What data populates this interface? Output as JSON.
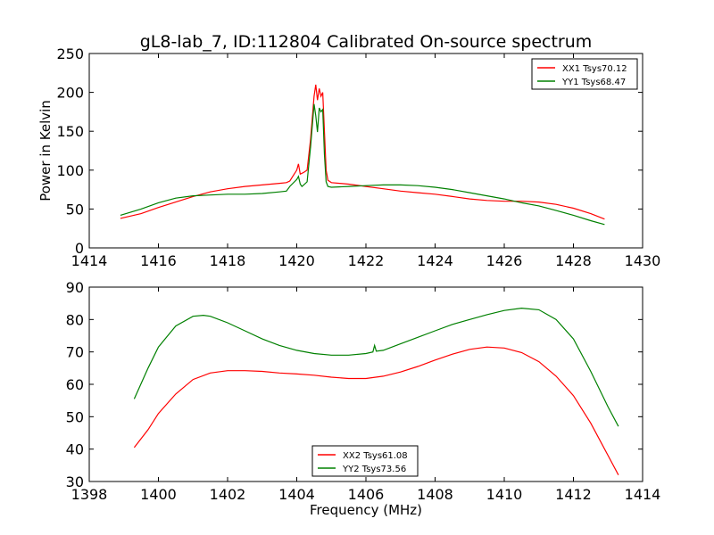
{
  "figure_title": "gL8-lab_7, ID:112804 Calibrated On-source spectrum",
  "chart_data": [
    {
      "type": "line",
      "title": "gL8-lab_7, ID:112804 Calibrated On-source spectrum",
      "xlabel": "",
      "ylabel": "Power in Kelvin",
      "xlim": [
        1414,
        1430
      ],
      "ylim": [
        0,
        250
      ],
      "xticks": [
        1414,
        1416,
        1418,
        1420,
        1422,
        1424,
        1426,
        1428,
        1430
      ],
      "yticks": [
        0,
        50,
        100,
        150,
        200,
        250
      ],
      "legend": "top-right",
      "series": [
        {
          "name": "XX1 Tsys70.12",
          "color": "#ff0000",
          "points": [
            [
              1414.9,
              38
            ],
            [
              1415.5,
              44
            ],
            [
              1416,
              52
            ],
            [
              1416.5,
              59
            ],
            [
              1417,
              66
            ],
            [
              1417.5,
              72
            ],
            [
              1418,
              76
            ],
            [
              1418.5,
              79
            ],
            [
              1419,
              81
            ],
            [
              1419.5,
              83
            ],
            [
              1419.7,
              84
            ],
            [
              1419.8,
              86
            ],
            [
              1420.0,
              100
            ],
            [
              1420.05,
              108
            ],
            [
              1420.1,
              95
            ],
            [
              1420.2,
              97
            ],
            [
              1420.3,
              100
            ],
            [
              1420.4,
              140
            ],
            [
              1420.5,
              195
            ],
            [
              1420.55,
              210
            ],
            [
              1420.6,
              190
            ],
            [
              1420.65,
              205
            ],
            [
              1420.7,
              195
            ],
            [
              1420.75,
              200
            ],
            [
              1420.8,
              150
            ],
            [
              1420.85,
              100
            ],
            [
              1420.9,
              87
            ],
            [
              1421,
              84
            ],
            [
              1421.5,
              82
            ],
            [
              1422,
              79
            ],
            [
              1422.5,
              76
            ],
            [
              1423,
              73
            ],
            [
              1423.5,
              71
            ],
            [
              1424,
              69
            ],
            [
              1424.5,
              66
            ],
            [
              1425,
              63
            ],
            [
              1425.5,
              61
            ],
            [
              1426,
              60
            ],
            [
              1426.5,
              60
            ],
            [
              1427,
              59
            ],
            [
              1427.5,
              56
            ],
            [
              1428,
              51
            ],
            [
              1428.5,
              44
            ],
            [
              1428.9,
              37
            ]
          ]
        },
        {
          "name": "YY1 Tsys68.47",
          "color": "#008000",
          "points": [
            [
              1414.9,
              42
            ],
            [
              1415.5,
              50
            ],
            [
              1416,
              58
            ],
            [
              1416.5,
              64
            ],
            [
              1417,
              67
            ],
            [
              1417.5,
              68
            ],
            [
              1418,
              69
            ],
            [
              1418.5,
              69
            ],
            [
              1419,
              70
            ],
            [
              1419.5,
              72
            ],
            [
              1419.7,
              73
            ],
            [
              1419.8,
              79
            ],
            [
              1420.0,
              88
            ],
            [
              1420.05,
              92
            ],
            [
              1420.1,
              82
            ],
            [
              1420.15,
              79
            ],
            [
              1420.2,
              81
            ],
            [
              1420.3,
              85
            ],
            [
              1420.4,
              130
            ],
            [
              1420.5,
              185
            ],
            [
              1420.55,
              170
            ],
            [
              1420.6,
              149
            ],
            [
              1420.65,
              180
            ],
            [
              1420.7,
              175
            ],
            [
              1420.75,
              178
            ],
            [
              1420.8,
              120
            ],
            [
              1420.85,
              85
            ],
            [
              1420.9,
              79
            ],
            [
              1421,
              78
            ],
            [
              1421.5,
              79
            ],
            [
              1422,
              80
            ],
            [
              1422.5,
              81
            ],
            [
              1423,
              81
            ],
            [
              1423.5,
              80
            ],
            [
              1424,
              78
            ],
            [
              1424.5,
              75
            ],
            [
              1425,
              71
            ],
            [
              1425.5,
              67
            ],
            [
              1426,
              63
            ],
            [
              1426.5,
              58
            ],
            [
              1427,
              54
            ],
            [
              1427.5,
              48
            ],
            [
              1428,
              42
            ],
            [
              1428.5,
              35
            ],
            [
              1428.9,
              30
            ]
          ]
        }
      ]
    },
    {
      "type": "line",
      "title": "",
      "xlabel": "Frequency (MHz)",
      "ylabel": "",
      "xlim": [
        1398,
        1414
      ],
      "ylim": [
        30,
        90
      ],
      "xticks": [
        1398,
        1400,
        1402,
        1404,
        1406,
        1408,
        1410,
        1412,
        1414
      ],
      "yticks": [
        30,
        40,
        50,
        60,
        70,
        80,
        90
      ],
      "legend": "bottom-center",
      "series": [
        {
          "name": "XX2 Tsys61.08",
          "color": "#ff0000",
          "points": [
            [
              1399.3,
              40.5
            ],
            [
              1399.7,
              46
            ],
            [
              1400,
              51
            ],
            [
              1400.5,
              57
            ],
            [
              1401,
              61.5
            ],
            [
              1401.5,
              63.5
            ],
            [
              1402,
              64.2
            ],
            [
              1402.5,
              64.2
            ],
            [
              1403,
              64
            ],
            [
              1403.5,
              63.5
            ],
            [
              1404,
              63.2
            ],
            [
              1404.5,
              62.8
            ],
            [
              1405,
              62.2
            ],
            [
              1405.5,
              61.8
            ],
            [
              1406,
              61.8
            ],
            [
              1406.5,
              62.5
            ],
            [
              1407,
              63.8
            ],
            [
              1407.5,
              65.5
            ],
            [
              1408,
              67.5
            ],
            [
              1408.5,
              69.3
            ],
            [
              1409,
              70.8
            ],
            [
              1409.5,
              71.5
            ],
            [
              1410,
              71.2
            ],
            [
              1410.5,
              69.8
            ],
            [
              1411,
              67
            ],
            [
              1411.5,
              62.5
            ],
            [
              1412,
              56.5
            ],
            [
              1412.5,
              48
            ],
            [
              1413,
              38
            ],
            [
              1413.3,
              32
            ]
          ]
        },
        {
          "name": "YY2 Tsys73.56",
          "color": "#008000",
          "points": [
            [
              1399.3,
              55.5
            ],
            [
              1399.7,
              65
            ],
            [
              1400,
              71.5
            ],
            [
              1400.5,
              78
            ],
            [
              1401,
              81
            ],
            [
              1401.3,
              81.3
            ],
            [
              1401.5,
              81
            ],
            [
              1402,
              79
            ],
            [
              1402.5,
              76.5
            ],
            [
              1403,
              74
            ],
            [
              1403.5,
              72
            ],
            [
              1404,
              70.5
            ],
            [
              1404.5,
              69.5
            ],
            [
              1405,
              69
            ],
            [
              1405.5,
              69
            ],
            [
              1406,
              69.5
            ],
            [
              1406.2,
              70
            ],
            [
              1406.25,
              72
            ],
            [
              1406.3,
              70.2
            ],
            [
              1406.5,
              70.5
            ],
            [
              1407,
              72.5
            ],
            [
              1407.5,
              74.5
            ],
            [
              1408,
              76.5
            ],
            [
              1408.5,
              78.5
            ],
            [
              1409,
              80
            ],
            [
              1409.5,
              81.5
            ],
            [
              1410,
              82.8
            ],
            [
              1410.5,
              83.5
            ],
            [
              1411,
              83
            ],
            [
              1411.5,
              80
            ],
            [
              1412,
              74
            ],
            [
              1412.5,
              64
            ],
            [
              1413,
              53
            ],
            [
              1413.3,
              47
            ]
          ]
        }
      ]
    }
  ]
}
